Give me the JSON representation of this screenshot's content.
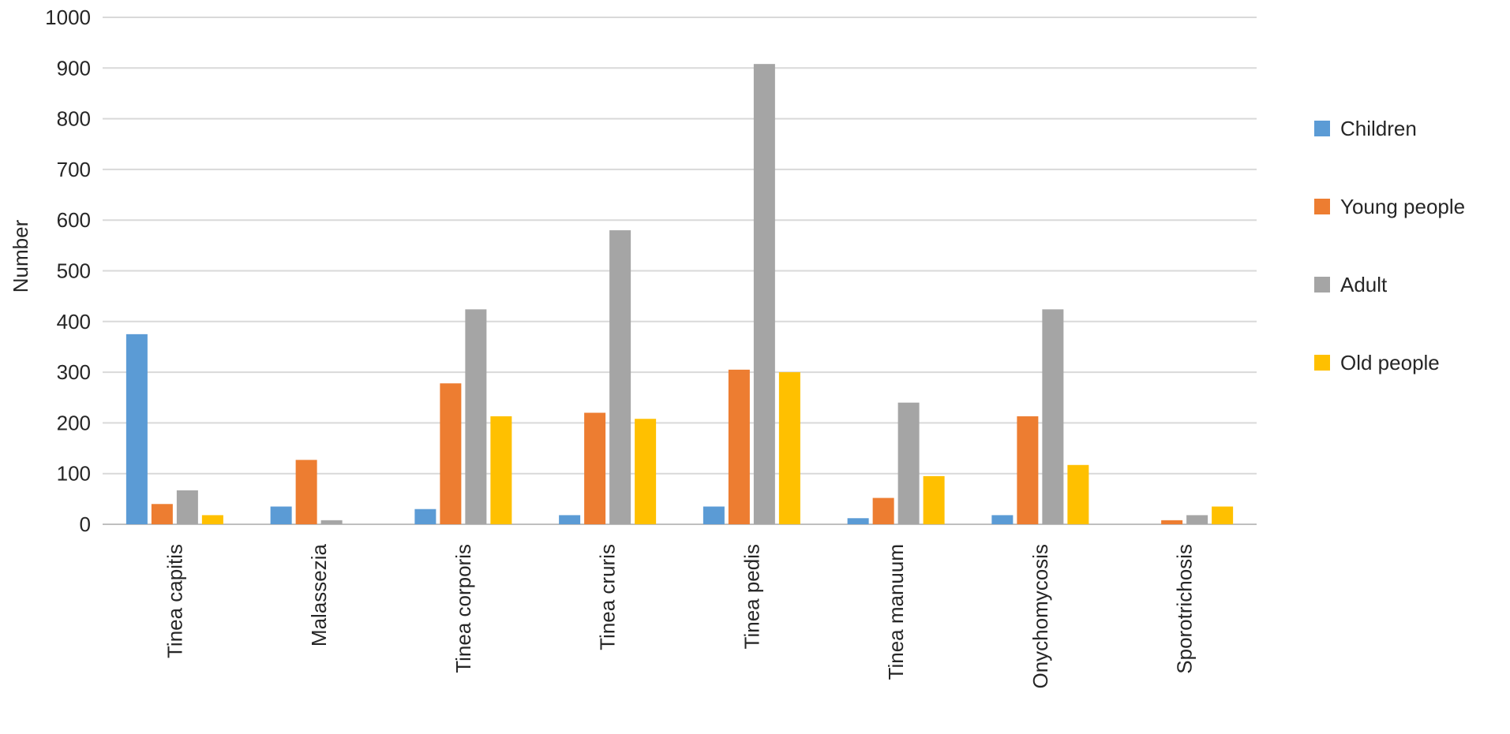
{
  "chart_data": {
    "type": "bar",
    "ylabel": "Number",
    "xlabel": "",
    "ylim": [
      0,
      1000
    ],
    "yticks": [
      "0",
      "100",
      "200",
      "300",
      "400",
      "500",
      "600",
      "700",
      "800",
      "900",
      "1000"
    ],
    "grid": true,
    "legend_position": "right",
    "categories": [
      "Tinea capitis",
      "Malassezia",
      "Tinea corporis",
      "Tinea cruris",
      "Tinea pedis",
      "Tinea manuum",
      "Onychomycosis",
      "Sporotrichosis"
    ],
    "series": [
      {
        "name": "Children",
        "color": "#5b9bd5",
        "values": [
          375,
          35,
          30,
          18,
          35,
          12,
          18,
          0
        ]
      },
      {
        "name": "Young people",
        "color": "#ed7d31",
        "values": [
          40,
          127,
          278,
          220,
          305,
          52,
          213,
          8
        ]
      },
      {
        "name": "Adult",
        "color": "#a5a5a5",
        "values": [
          67,
          8,
          424,
          580,
          908,
          240,
          424,
          18
        ]
      },
      {
        "name": "Old people",
        "color": "#ffc000",
        "values": [
          18,
          0,
          213,
          208,
          300,
          95,
          117,
          35
        ]
      }
    ]
  }
}
